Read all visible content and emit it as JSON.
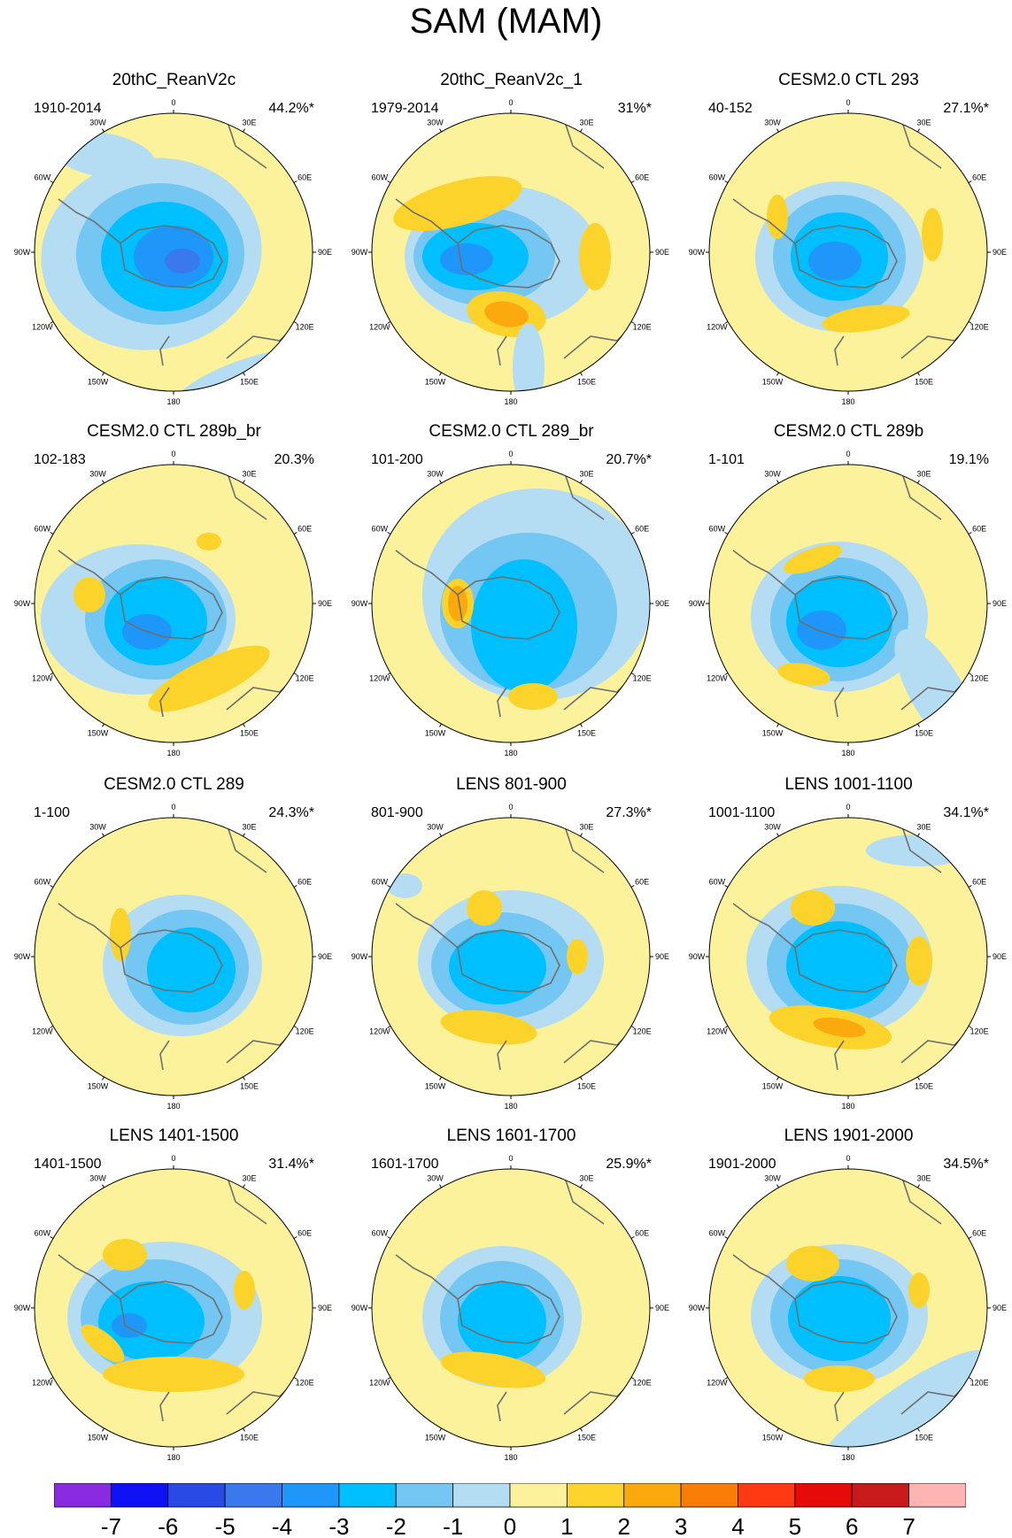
{
  "figure": {
    "title": "SAM (MAM)"
  },
  "panels": [
    {
      "title": "20thC_ReanV2c",
      "period": "1910-2014",
      "variance": "44.2%*"
    },
    {
      "title": "20thC_ReanV2c_1",
      "period": "1979-2014",
      "variance": "31%*"
    },
    {
      "title": "CESM2.0 CTL 293",
      "period": "40-152",
      "variance": "27.1%*"
    },
    {
      "title": "CESM2.0 CTL 289b_br",
      "period": "102-183",
      "variance": "20.3%"
    },
    {
      "title": "CESM2.0 CTL 289_br",
      "period": "101-200",
      "variance": "20.7%*"
    },
    {
      "title": "CESM2.0 CTL 289b",
      "period": "1-101",
      "variance": "19.1%"
    },
    {
      "title": "CESM2.0 CTL 289",
      "period": "1-100",
      "variance": "24.3%*"
    },
    {
      "title": "LENS 801-900",
      "period": "801-900",
      "variance": "27.3%*"
    },
    {
      "title": "LENS 1001-1100",
      "period": "1001-1100",
      "variance": "34.1%*"
    },
    {
      "title": "LENS 1401-1500",
      "period": "1401-1500",
      "variance": "31.4%*"
    },
    {
      "title": "LENS 1601-1700",
      "period": "1601-1700",
      "variance": "25.9%*"
    },
    {
      "title": "LENS 1901-2000",
      "period": "1901-2000",
      "variance": "34.5%*"
    }
  ],
  "longitude_labels": [
    "0",
    "30E",
    "60E",
    "90E",
    "120E",
    "150E",
    "180",
    "150W",
    "120W",
    "90W",
    "60W",
    "30W"
  ],
  "colorbar": {
    "labels": [
      "-7",
      "-6",
      "-5",
      "-4",
      "-3",
      "-2",
      "-1",
      "0",
      "1",
      "2",
      "3",
      "4",
      "5",
      "6",
      "7"
    ],
    "colors": [
      "#8a2be2",
      "#1010f5",
      "#2a4ae6",
      "#3a78ee",
      "#1e96fa",
      "#00bfff",
      "#73c7f2",
      "#b4ddf3",
      "#fcf29b",
      "#fbd32a",
      "#fba90c",
      "#fa7d08",
      "#ff3a12",
      "#e60a0a",
      "#c81a1a",
      "#ffb4b4"
    ]
  },
  "palette": {
    "coast": "#6e6e6e"
  }
}
